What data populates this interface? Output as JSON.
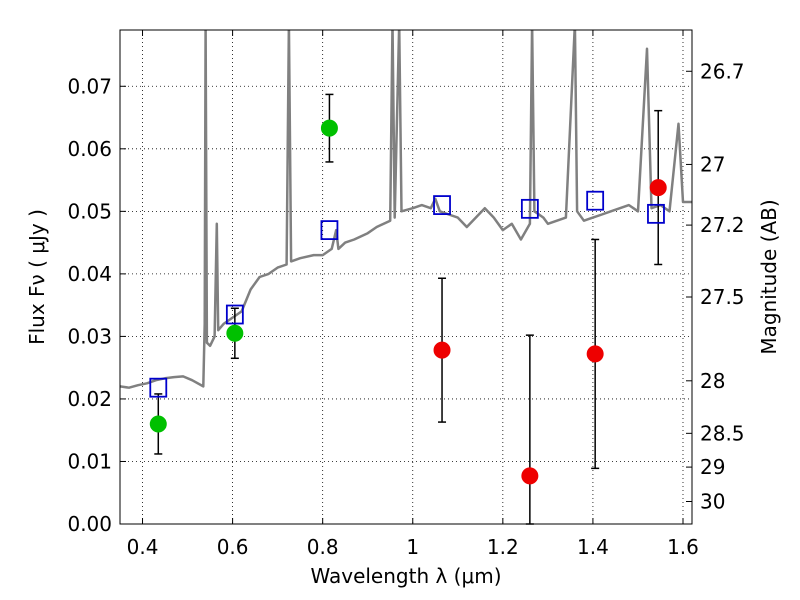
{
  "chart_data": {
    "type": "scatter",
    "x": {
      "label": "Wavelength  λ (μm)",
      "lim": [
        0.35,
        1.62
      ],
      "ticks": [
        0.4,
        0.6,
        0.8,
        1.0,
        1.2,
        1.4,
        1.6
      ],
      "tick_labels": [
        "0.4",
        "0.6",
        "0.8",
        "1",
        "1.2",
        "1.4",
        "1.6"
      ]
    },
    "y": {
      "label": "Flux  Fν  ( μJy )",
      "lim": [
        0.0,
        0.079
      ],
      "ticks": [
        0.0,
        0.01,
        0.02,
        0.03,
        0.04,
        0.05,
        0.06,
        0.07
      ],
      "tick_labels": [
        "0.00",
        "0.01",
        "0.02",
        "0.03",
        "0.04",
        "0.05",
        "0.06",
        "0.07"
      ]
    },
    "y2": {
      "label": "Magnitude (AB)",
      "tick_labels": [
        {
          "label": "26.7",
          "flux": 0.0724
        },
        {
          "label": "27",
          "flux": 0.0575
        },
        {
          "label": "27.2",
          "flux": 0.0478
        },
        {
          "label": "27.5",
          "flux": 0.0363
        },
        {
          "label": "28",
          "flux": 0.0229
        },
        {
          "label": "28.5",
          "flux": 0.0145
        },
        {
          "label": "29",
          "flux": 0.0091
        },
        {
          "label": "30",
          "flux": 0.0036
        }
      ]
    },
    "grid": true,
    "colors": {
      "spectrum": "#808080",
      "detection": "#00c000",
      "upper_limit": "#ee0000",
      "model_box": "#0000cc",
      "errorbar": "#000000"
    },
    "spectrum": {
      "points": [
        [
          0.35,
          0.022
        ],
        [
          0.37,
          0.0218
        ],
        [
          0.39,
          0.0222
        ],
        [
          0.41,
          0.0225
        ],
        [
          0.43,
          0.023
        ],
        [
          0.45,
          0.0233
        ],
        [
          0.47,
          0.0235
        ],
        [
          0.49,
          0.0236
        ],
        [
          0.51,
          0.023
        ],
        [
          0.535,
          0.022
        ],
        [
          0.538,
          0.032
        ],
        [
          0.54,
          0.08
        ],
        [
          0.543,
          0.029
        ],
        [
          0.55,
          0.0285
        ],
        [
          0.56,
          0.03
        ],
        [
          0.565,
          0.048
        ],
        [
          0.568,
          0.031
        ],
        [
          0.58,
          0.032
        ],
        [
          0.6,
          0.033
        ],
        [
          0.62,
          0.034
        ],
        [
          0.64,
          0.0375
        ],
        [
          0.66,
          0.0395
        ],
        [
          0.68,
          0.04
        ],
        [
          0.7,
          0.041
        ],
        [
          0.72,
          0.0415
        ],
        [
          0.725,
          0.08
        ],
        [
          0.73,
          0.042
        ],
        [
          0.75,
          0.0425
        ],
        [
          0.78,
          0.043
        ],
        [
          0.8,
          0.043
        ],
        [
          0.82,
          0.044
        ],
        [
          0.83,
          0.047
        ],
        [
          0.835,
          0.044
        ],
        [
          0.85,
          0.045
        ],
        [
          0.87,
          0.0455
        ],
        [
          0.9,
          0.0465
        ],
        [
          0.92,
          0.0475
        ],
        [
          0.95,
          0.0485
        ],
        [
          0.955,
          0.08
        ],
        [
          0.96,
          0.049
        ],
        [
          0.97,
          0.08
        ],
        [
          0.975,
          0.05
        ],
        [
          1.0,
          0.0505
        ],
        [
          1.02,
          0.051
        ],
        [
          1.04,
          0.0505
        ],
        [
          1.05,
          0.052
        ],
        [
          1.06,
          0.05
        ],
        [
          1.08,
          0.0495
        ],
        [
          1.1,
          0.049
        ],
        [
          1.12,
          0.0475
        ],
        [
          1.14,
          0.049
        ],
        [
          1.16,
          0.0505
        ],
        [
          1.18,
          0.049
        ],
        [
          1.2,
          0.047
        ],
        [
          1.22,
          0.048
        ],
        [
          1.24,
          0.0455
        ],
        [
          1.26,
          0.048
        ],
        [
          1.265,
          0.08
        ],
        [
          1.27,
          0.05
        ],
        [
          1.29,
          0.049
        ],
        [
          1.3,
          0.048
        ],
        [
          1.32,
          0.0485
        ],
        [
          1.34,
          0.049
        ],
        [
          1.36,
          0.08
        ],
        [
          1.365,
          0.05
        ],
        [
          1.38,
          0.0485
        ],
        [
          1.4,
          0.049
        ],
        [
          1.42,
          0.0495
        ],
        [
          1.44,
          0.05
        ],
        [
          1.46,
          0.0505
        ],
        [
          1.48,
          0.051
        ],
        [
          1.5,
          0.05
        ],
        [
          1.52,
          0.076
        ],
        [
          1.53,
          0.0505
        ],
        [
          1.55,
          0.051
        ],
        [
          1.57,
          0.05
        ],
        [
          1.59,
          0.064
        ],
        [
          1.6,
          0.0515
        ],
        [
          1.62,
          0.0515
        ]
      ]
    },
    "series": [
      {
        "marker": "circle",
        "color_key": "detection",
        "points": [
          {
            "x": 0.435,
            "y": 0.016,
            "err": 0.0048
          },
          {
            "x": 0.605,
            "y": 0.0305,
            "err": 0.004
          },
          {
            "x": 0.815,
            "y": 0.0633,
            "err": 0.0054
          }
        ]
      },
      {
        "marker": "circle",
        "color_key": "upper_limit",
        "points": [
          {
            "x": 1.065,
            "y": 0.0278,
            "err": 0.0115
          },
          {
            "x": 1.26,
            "y": 0.0077,
            "err": 0.0225
          },
          {
            "x": 1.405,
            "y": 0.0272,
            "err": 0.0183
          },
          {
            "x": 1.545,
            "y": 0.0538,
            "err": 0.0123
          }
        ]
      },
      {
        "marker": "square",
        "color_key": "model_box",
        "points": [
          {
            "x": 0.435,
            "y": 0.0218
          },
          {
            "x": 0.605,
            "y": 0.0335
          },
          {
            "x": 0.815,
            "y": 0.047
          },
          {
            "x": 1.065,
            "y": 0.051
          },
          {
            "x": 1.26,
            "y": 0.0504
          },
          {
            "x": 1.405,
            "y": 0.0517
          },
          {
            "x": 1.54,
            "y": 0.0496
          }
        ]
      }
    ]
  }
}
